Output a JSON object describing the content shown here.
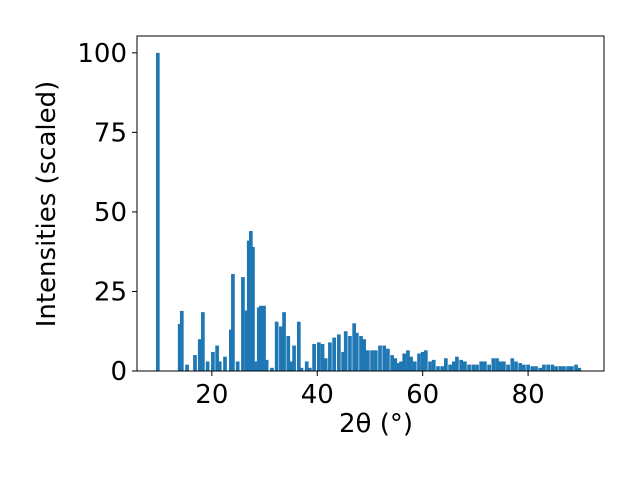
{
  "chart_data": {
    "type": "bar",
    "xlabel": "2θ (°)",
    "ylabel": "Intensities (scaled)",
    "color": "#1f77b4",
    "bar_width": 0.7,
    "x": [
      9.75,
      13.9,
      14.3,
      15.3,
      16.8,
      17.7,
      18.3,
      19.2,
      20.2,
      21,
      21.5,
      22.5,
      23.6,
      24,
      24.9,
      25.9,
      26.6,
      27,
      27.4,
      27.8,
      28.3,
      28.9,
      29.3,
      29.9,
      30.4,
      31.4,
      32.3,
      33.1,
      33.7,
      34.5,
      35,
      35.6,
      36.5,
      37,
      38,
      38.6,
      39.4,
      40.3,
      41,
      41.6,
      42.4,
      43.2,
      44.1,
      44.9,
      45.4,
      46.2,
      47,
      47.5,
      48.3,
      48.9,
      49.6,
      50.4,
      51.1,
      51.9,
      52.7,
      53.4,
      54.2,
      54.8,
      55.3,
      55.9,
      56.5,
      57.2,
      57.8,
      58.5,
      59.3,
      60,
      60.6,
      61.4,
      62.1,
      62.9,
      63.7,
      64.4,
      65.2,
      65.9,
      66.5,
      67.3,
      68,
      68.8,
      69.6,
      70.3,
      71.1,
      71.8,
      72.6,
      73.4,
      74.1,
      74.7,
      75.4,
      76.2,
      77,
      77.7,
      78.5,
      79.2,
      80,
      80.8,
      81.5,
      82.3,
      83,
      83.8,
      84.6,
      85.3,
      86.1,
      86.8,
      87.6,
      88.3,
      89.1,
      89.7
    ],
    "values": [
      100,
      14.8,
      18.9,
      2,
      5,
      10,
      18.5,
      3,
      6,
      8,
      3,
      4.5,
      13,
      30.5,
      3,
      29.5,
      19,
      41,
      44,
      39,
      3,
      20,
      20.5,
      20.5,
      3.5,
      1,
      15.5,
      14,
      18.5,
      11,
      3,
      8,
      15.5,
      1,
      3,
      1,
      8.5,
      9,
      8.5,
      4,
      9,
      10.5,
      11.5,
      6,
      12.5,
      11,
      15,
      12,
      11,
      10,
      6.5,
      6.5,
      6.5,
      8,
      8,
      7,
      5,
      4,
      2.5,
      3,
      5.5,
      6.5,
      4.5,
      3,
      5.5,
      6,
      6.5,
      3,
      3.5,
      1.5,
      1.5,
      4,
      2,
      3,
      4.5,
      3.5,
      3,
      2,
      2,
      2,
      3,
      3,
      2,
      4,
      4,
      3,
      3,
      2,
      4,
      3,
      2.5,
      2,
      2,
      1.5,
      1.5,
      1,
      2,
      2,
      2,
      1.5,
      1.5,
      1.5,
      1.5,
      1.5,
      2,
      1
    ],
    "xlim": [
      5.8,
      94.4
    ],
    "ylim": [
      0,
      105.3
    ],
    "xticks": [
      20,
      40,
      60,
      80
    ],
    "yticks": [
      0,
      25,
      50,
      75,
      100
    ]
  }
}
